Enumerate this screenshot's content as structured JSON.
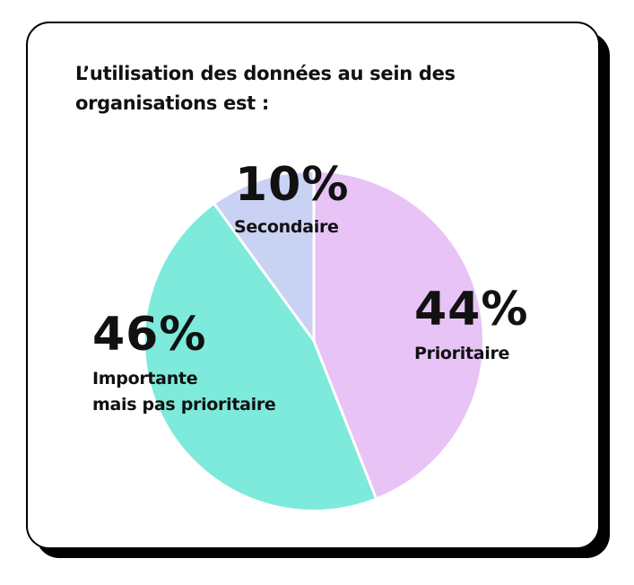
{
  "title": "L’utilisation des données au sein des organisations est :",
  "colors": {
    "prioritaire": "#e7c3f6",
    "importante": "#7deadb",
    "secondaire": "#c9d2f3",
    "separator": "#ffffff",
    "text": "#111111",
    "card_border": "#000000"
  },
  "chart_data": {
    "type": "pie",
    "title": "L’utilisation des données au sein des organisations est :",
    "slices": [
      {
        "label": "Prioritaire",
        "value": 44,
        "value_label": "44%",
        "color": "#e7c3f6"
      },
      {
        "label_lines": [
          "Importante",
          "mais pas prioritaire"
        ],
        "value": 46,
        "value_label": "46%",
        "color": "#7deadb"
      },
      {
        "label": "Secondaire",
        "value": 10,
        "value_label": "10%",
        "color": "#c9d2f3"
      }
    ],
    "start": "12 o'clock",
    "direction": "clockwise"
  }
}
